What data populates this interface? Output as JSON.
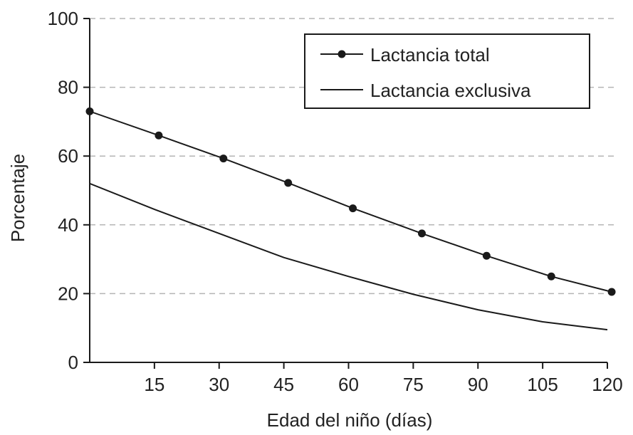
{
  "chart_data": {
    "type": "line",
    "xlabel": "Edad del niño (días)",
    "ylabel": "Porcentaje",
    "xlim": [
      0,
      120
    ],
    "ylim": [
      0,
      100
    ],
    "x_ticks": [
      "15",
      "30",
      "45",
      "60",
      "75",
      "90",
      "105",
      "120"
    ],
    "y_ticks": [
      "0",
      "20",
      "40",
      "60",
      "80",
      "100"
    ],
    "grid": "horizontal-dashed",
    "legend_position": "top-right",
    "series": [
      {
        "name": "Lactancia total",
        "marker": "circle",
        "x": [
          0,
          16,
          31,
          46,
          61,
          77,
          92,
          107,
          121
        ],
        "y": [
          73,
          66,
          59.3,
          52.2,
          44.8,
          37.5,
          31,
          25,
          20.5
        ]
      },
      {
        "name": "Lactancia exclusiva",
        "marker": "none",
        "x": [
          0,
          15,
          30,
          45,
          60,
          75,
          90,
          105,
          120
        ],
        "y": [
          52,
          44.5,
          37.5,
          30.5,
          25,
          19.8,
          15.3,
          11.8,
          9.5
        ]
      }
    ]
  },
  "colors": {
    "line": "#1a1a1a",
    "grid": "#b5b5b5",
    "text": "#222222"
  }
}
